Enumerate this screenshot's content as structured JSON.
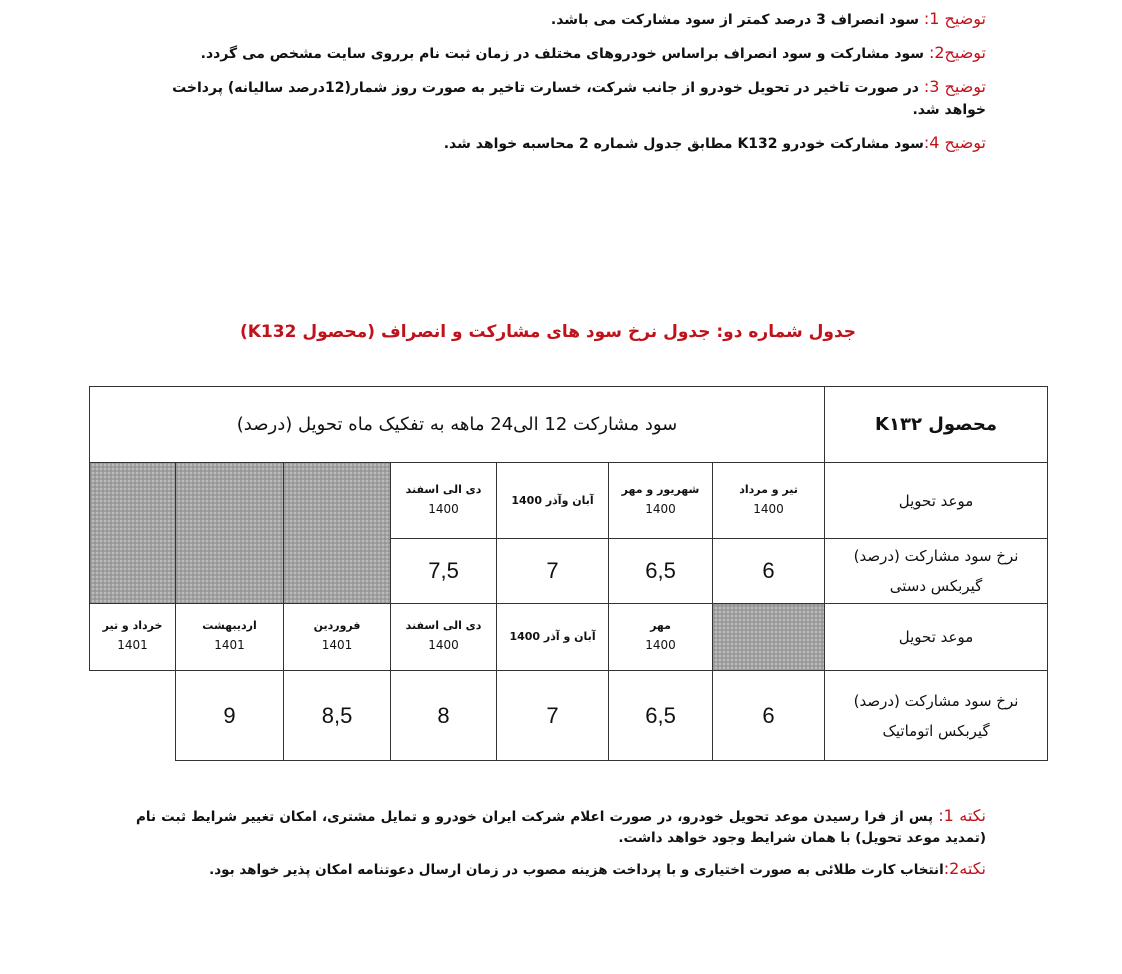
{
  "top_notes": [
    {
      "label": "توضیح 1:",
      "text": " سود انصراف 3 درصد کمتر از سود مشارکت می باشد."
    },
    {
      "label": "توضیح2:",
      "text": " سود مشارکت و سود انصراف براساس خودروهای مختلف در زمان ثبت نام برروی سایت مشخص می گردد."
    },
    {
      "label": "توضیح 3:",
      "text": " در صورت تاخیر در تحویل خودرو از جانب شرکت، خسارت تاخیر به صورت روز شمار(12درصد سالیانه) پرداخت خواهد شد."
    },
    {
      "label": "توضیح 4:",
      "text": "سود مشارکت خودرو K132 مطابق جدول شماره 2 محاسبه خواهد شد."
    }
  ],
  "table_title": "جدول شماره دو: جدول نرخ سود های مشارکت و انصراف (محصول K132)",
  "table": {
    "product": "محصول K۱۳۲",
    "header_span": "سود مشارکت 12 الی24 ماهه به تفکیک ماه تحویل (درصد)",
    "manual": {
      "delivery_label": "موعد تحویل",
      "rate_label_1": "نرخ سود مشارکت (درصد)",
      "rate_label_2": "گیربکس دستی",
      "periods": [
        {
          "month": "تیر و مرداد",
          "year": "1400",
          "rate": "6"
        },
        {
          "month": "شهریور و مهر",
          "year": "1400",
          "rate": "6,5"
        },
        {
          "month": "آبان وآذر 1400",
          "year": "",
          "rate": "7"
        },
        {
          "month": "دی الی اسفند",
          "year": "1400",
          "rate": "7,5"
        }
      ]
    },
    "automatic": {
      "delivery_label": "موعد تحویل",
      "rate_label_1": "نرخ سود مشارکت (درصد)",
      "rate_label_2": "گیربکس اتوماتیک",
      "periods": [
        {
          "month": "مهر",
          "year": "1400",
          "rate": "6"
        },
        {
          "month": "آبان و آذر 1400",
          "year": "",
          "rate": "6,5"
        },
        {
          "month": "دی الی اسفند",
          "year": "1400",
          "rate": "7"
        },
        {
          "month": "فروردین",
          "year": "1401",
          "rate": "8"
        },
        {
          "month": "اردیبهشت",
          "year": "1401",
          "rate": "8,5"
        },
        {
          "month": "خرداد و تیر",
          "year": "1401",
          "rate": "9"
        }
      ]
    }
  },
  "bottom_notes": [
    {
      "label": "نکته 1:",
      "text": " پس از فرا رسیدن موعد تحویل خودرو، در صورت اعلام شرکت ایران خودرو و تمایل مشتری، امکان تغییر شرایط ثبت نام (تمدید موعد تحویل) با همان شرایط وجود خواهد داشت."
    },
    {
      "label": "نکته2:",
      "text": "انتخاب کارت طلائی به صورت اختیاری و با پرداخت هزینه مصوب در زمان ارسال دعوتنامه امکان پذیر خواهد بود."
    }
  ],
  "colors": {
    "label_red": "#c0121b",
    "hatch": "#bbbbbb"
  }
}
